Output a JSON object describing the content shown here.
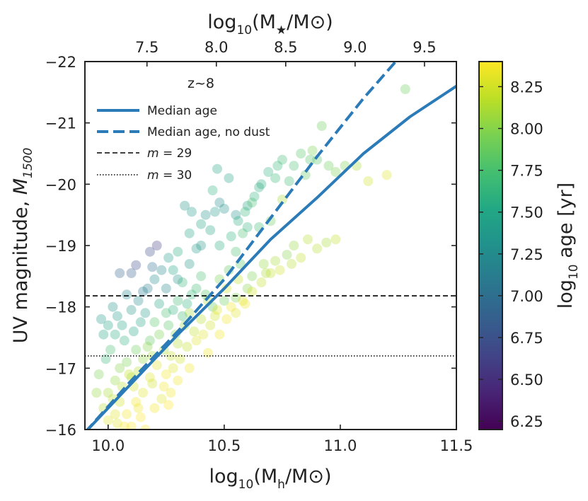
{
  "chart_data": {
    "type": "scatter",
    "xlabel": "log10(Mh/M⊙)",
    "xlabel_parts": {
      "pre": "log",
      "sub": "10",
      "mid": "(M",
      "msub": "h",
      "post": "/M⊙)"
    },
    "top_xlabel": "log10(M★/M⊙)",
    "top_xlabel_parts": {
      "pre": "log",
      "sub": "10",
      "mid": "(M",
      "msub": "★",
      "post": "/M⊙)"
    },
    "ylabel": "UV magnitude, M1500",
    "ylabel_parts": {
      "pre": "UV magnitude, ",
      "mid": "M",
      "msub": "1500"
    },
    "colorbar_label": "log10 age [yr]",
    "colorbar_label_parts": {
      "pre": "log",
      "sub": "10",
      "post": " age [yr]"
    },
    "xlim": [
      9.9,
      11.5
    ],
    "ylim": [
      -16,
      -22
    ],
    "clim": [
      6.2,
      8.4
    ],
    "x_ticks": [
      "10.0",
      "10.5",
      "11.0",
      "11.5"
    ],
    "x_tick_values": [
      10.0,
      10.5,
      11.0,
      11.5
    ],
    "y_ticks": [
      "−16",
      "−17",
      "−18",
      "−19",
      "−20",
      "−21",
      "−22"
    ],
    "y_tick_values": [
      -16,
      -17,
      -18,
      -19,
      -20,
      -21,
      -22
    ],
    "top_ticks": [
      "7.5",
      "8.0",
      "8.5",
      "9.0",
      "9.5"
    ],
    "top_tick_values": [
      7.5,
      8.0,
      8.5,
      9.0,
      9.5
    ],
    "top_axis_map": {
      "at_x": [
        10.0,
        11.5
      ],
      "value": [
        7.22,
        9.73
      ]
    },
    "colorbar_ticks": [
      "6.25",
      "6.50",
      "6.75",
      "7.00",
      "7.25",
      "7.50",
      "7.75",
      "8.00",
      "8.25"
    ],
    "colorbar_tick_values": [
      6.25,
      6.5,
      6.75,
      7.0,
      7.25,
      7.5,
      7.75,
      8.0,
      8.25
    ],
    "legend": {
      "title": "z~8",
      "position": "upper-left",
      "entries": [
        {
          "label": "Median age",
          "style": "solid",
          "color": "#2b7bb9"
        },
        {
          "label": "Median age, no dust",
          "style": "dashed",
          "color": "#2b7bb9"
        },
        {
          "label_italic": "m",
          "label_rest": " = 29",
          "style": "dashed-thin",
          "color": "#000000"
        },
        {
          "label_italic": "m",
          "label_rest": " = 30",
          "style": "dotted",
          "color": "#000000"
        }
      ]
    },
    "series": [
      {
        "name": "Median age",
        "style": "solid",
        "color": "#2b7bb9",
        "x": [
          9.9,
          10.1,
          10.3,
          10.5,
          10.7,
          10.9,
          11.1,
          11.3,
          11.5
        ],
        "y": [
          -15.95,
          -16.75,
          -17.55,
          -18.3,
          -19.1,
          -19.78,
          -20.5,
          -21.1,
          -21.6
        ]
      },
      {
        "name": "Median age, no dust",
        "style": "dashed",
        "color": "#2b7bb9",
        "x": [
          9.9,
          10.1,
          10.3,
          10.5,
          10.7,
          10.9,
          11.1,
          11.25
        ],
        "y": [
          -15.95,
          -16.8,
          -17.6,
          -18.45,
          -19.45,
          -20.45,
          -21.4,
          -22.05
        ]
      }
    ],
    "hlines": [
      {
        "name": "m = 29",
        "y": -18.18,
        "style": "dashed"
      },
      {
        "name": "m = 30",
        "y": -17.2,
        "style": "dotted"
      }
    ],
    "scatter_points": [
      [
        10.05,
        -18.55,
        6.9
      ],
      [
        10.1,
        -18.55,
        6.85
      ],
      [
        10.12,
        -18.68,
        6.7
      ],
      [
        10.21,
        -19.0,
        6.6
      ],
      [
        10.18,
        -18.9,
        6.7
      ],
      [
        10.02,
        -18.0,
        7.35
      ],
      [
        10.04,
        -17.85,
        7.4
      ],
      [
        10.08,
        -18.2,
        7.2
      ],
      [
        10.15,
        -18.25,
        7.1
      ],
      [
        10.25,
        -18.3,
        7.2
      ],
      [
        10.3,
        -18.45,
        7.3
      ],
      [
        10.35,
        -18.7,
        7.35
      ],
      [
        10.4,
        -19.0,
        7.35
      ],
      [
        10.42,
        -19.5,
        7.3
      ],
      [
        10.48,
        -19.7,
        7.25
      ],
      [
        10.5,
        -19.6,
        7.3
      ],
      [
        10.45,
        -19.9,
        7.6
      ],
      [
        10.47,
        -20.25,
        7.5
      ],
      [
        10.52,
        -20.1,
        7.5
      ],
      [
        10.55,
        -19.5,
        7.3
      ],
      [
        10.6,
        -19.65,
        7.45
      ],
      [
        10.65,
        -19.95,
        7.55
      ],
      [
        10.72,
        -20.1,
        7.65
      ],
      [
        10.75,
        -20.4,
        7.7
      ],
      [
        10.78,
        -20.05,
        7.7
      ],
      [
        10.85,
        -20.15,
        7.85
      ],
      [
        10.88,
        -20.55,
        7.95
      ],
      [
        10.9,
        -20.4,
        7.8
      ],
      [
        10.95,
        -20.3,
        7.9
      ],
      [
        11.02,
        -20.3,
        7.95
      ],
      [
        11.12,
        -20.05,
        8.25
      ],
      [
        11.2,
        -20.15,
        8.3
      ],
      [
        11.07,
        -20.3,
        8.1
      ],
      [
        10.86,
        -19.1,
        8.15
      ],
      [
        10.75,
        -19.75,
        8.1
      ],
      [
        10.55,
        -18.9,
        7.75
      ],
      [
        10.58,
        -19.2,
        7.75
      ],
      [
        10.6,
        -19.3,
        7.6
      ],
      [
        10.62,
        -19.7,
        7.75
      ],
      [
        10.65,
        -19.3,
        7.7
      ],
      [
        10.7,
        -19.4,
        7.9
      ],
      [
        10.38,
        -18.95,
        7.4
      ],
      [
        10.35,
        -19.2,
        7.45
      ],
      [
        10.3,
        -18.9,
        7.55
      ],
      [
        10.28,
        -18.6,
        7.5
      ],
      [
        10.32,
        -18.4,
        7.65
      ],
      [
        10.38,
        -18.3,
        7.7
      ],
      [
        10.42,
        -18.2,
        7.8
      ],
      [
        10.45,
        -18.0,
        7.85
      ],
      [
        10.5,
        -18.1,
        7.9
      ],
      [
        10.55,
        -18.15,
        7.95
      ],
      [
        10.6,
        -18.3,
        8.0
      ],
      [
        10.62,
        -18.5,
        7.95
      ],
      [
        10.67,
        -18.7,
        8.05
      ],
      [
        10.68,
        -18.55,
        8.1
      ],
      [
        10.72,
        -18.75,
        8.1
      ],
      [
        10.77,
        -18.85,
        8.0
      ],
      [
        10.8,
        -19.0,
        8.05
      ],
      [
        10.48,
        -18.45,
        7.95
      ],
      [
        10.52,
        -18.6,
        7.85
      ],
      [
        10.57,
        -18.7,
        7.8
      ],
      [
        10.4,
        -18.5,
        7.75
      ],
      [
        10.36,
        -18.2,
        7.65
      ],
      [
        10.3,
        -18.1,
        7.7
      ],
      [
        10.25,
        -17.9,
        7.75
      ],
      [
        10.2,
        -17.75,
        7.8
      ],
      [
        10.18,
        -17.45,
        7.85
      ],
      [
        10.12,
        -17.3,
        7.9
      ],
      [
        10.08,
        -17.1,
        7.95
      ],
      [
        10.05,
        -17.0,
        8.0
      ],
      [
        10.03,
        -16.8,
        8.05
      ],
      [
        10.0,
        -16.6,
        8.1
      ],
      [
        9.98,
        -16.35,
        8.15
      ],
      [
        10.02,
        -16.5,
        8.2
      ],
      [
        10.06,
        -16.7,
        8.15
      ],
      [
        10.1,
        -16.85,
        8.1
      ],
      [
        10.13,
        -16.95,
        8.15
      ],
      [
        10.15,
        -17.15,
        8.05
      ],
      [
        10.17,
        -17.35,
        8.0
      ],
      [
        10.22,
        -17.55,
        7.95
      ],
      [
        10.24,
        -17.3,
        8.1
      ],
      [
        10.27,
        -17.2,
        8.2
      ],
      [
        10.3,
        -17.4,
        8.15
      ],
      [
        10.33,
        -17.7,
        8.05
      ],
      [
        10.35,
        -17.9,
        8.1
      ],
      [
        10.37,
        -17.6,
        8.2
      ],
      [
        10.4,
        -17.8,
        8.15
      ],
      [
        10.43,
        -18.1,
        8.1
      ],
      [
        10.46,
        -17.85,
        8.25
      ],
      [
        10.51,
        -18.3,
        8.25
      ],
      [
        10.56,
        -18.45,
        8.2
      ],
      [
        10.12,
        -16.45,
        8.35
      ],
      [
        10.08,
        -16.25,
        8.35
      ],
      [
        10.04,
        -16.1,
        8.3
      ],
      [
        10.0,
        -16.15,
        8.3
      ],
      [
        10.15,
        -16.6,
        8.3
      ],
      [
        10.18,
        -16.85,
        8.3
      ],
      [
        10.21,
        -17.05,
        8.3
      ],
      [
        10.25,
        -16.9,
        8.35
      ],
      [
        10.27,
        -16.6,
        8.35
      ],
      [
        10.1,
        -16.05,
        8.4
      ],
      [
        10.14,
        -16.2,
        8.4
      ],
      [
        10.2,
        -16.35,
        8.35
      ],
      [
        10.23,
        -16.5,
        8.3
      ],
      [
        10.16,
        -16.0,
        8.4
      ],
      [
        10.01,
        -17.3,
        7.75
      ],
      [
        10.03,
        -17.55,
        7.55
      ],
      [
        10.06,
        -17.7,
        7.45
      ],
      [
        10.1,
        -17.95,
        7.35
      ],
      [
        10.13,
        -18.1,
        7.25
      ],
      [
        10.17,
        -18.3,
        7.15
      ],
      [
        10.2,
        -18.45,
        7.25
      ],
      [
        10.23,
        -18.6,
        7.2
      ],
      [
        10.26,
        -18.8,
        7.4
      ],
      [
        10.19,
        -18.65,
        7.0
      ],
      [
        9.98,
        -17.55,
        7.5
      ],
      [
        9.97,
        -17.8,
        7.4
      ],
      [
        9.99,
        -17.15,
        7.65
      ],
      [
        9.96,
        -16.9,
        7.95
      ],
      [
        9.95,
        -16.6,
        8.05
      ],
      [
        10.0,
        -17.7,
        7.45
      ],
      [
        10.07,
        -17.45,
        7.6
      ],
      [
        10.11,
        -17.6,
        7.5
      ],
      [
        10.14,
        -17.75,
        7.45
      ],
      [
        10.16,
        -17.9,
        7.4
      ],
      [
        10.22,
        -18.05,
        7.45
      ],
      [
        10.28,
        -17.95,
        7.6
      ],
      [
        10.32,
        -17.85,
        7.7
      ],
      [
        10.34,
        -18.05,
        7.6
      ],
      [
        10.26,
        -17.7,
        7.8
      ],
      [
        10.29,
        -17.55,
        8.0
      ],
      [
        10.19,
        -17.2,
        8.1
      ],
      [
        10.09,
        -16.9,
        8.2
      ],
      [
        10.05,
        -16.45,
        8.25
      ],
      [
        10.03,
        -16.25,
        8.3
      ],
      [
        10.11,
        -16.7,
        8.25
      ],
      [
        10.19,
        -16.75,
        8.25
      ],
      [
        10.28,
        -17.0,
        8.3
      ],
      [
        10.31,
        -17.15,
        8.25
      ],
      [
        10.34,
        -17.35,
        8.2
      ],
      [
        10.38,
        -17.45,
        8.3
      ],
      [
        10.41,
        -17.55,
        8.3
      ],
      [
        10.44,
        -17.7,
        8.25
      ],
      [
        10.47,
        -17.95,
        8.3
      ],
      [
        10.53,
        -18.0,
        8.35
      ],
      [
        10.58,
        -18.1,
        8.3
      ],
      [
        10.62,
        -18.25,
        8.25
      ],
      [
        10.66,
        -18.4,
        8.2
      ],
      [
        10.7,
        -18.55,
        8.2
      ],
      [
        10.74,
        -18.6,
        8.25
      ],
      [
        10.79,
        -18.7,
        8.15
      ],
      [
        10.83,
        -18.8,
        8.2
      ],
      [
        10.9,
        -18.95,
        8.15
      ],
      [
        10.94,
        -19.05,
        8.1
      ],
      [
        10.98,
        -19.1,
        8.2
      ],
      [
        10.48,
        -19.0,
        7.55
      ],
      [
        10.53,
        -19.15,
        7.6
      ],
      [
        10.56,
        -19.4,
        7.55
      ],
      [
        10.59,
        -19.55,
        7.65
      ],
      [
        10.63,
        -19.8,
        7.6
      ],
      [
        10.66,
        -20.0,
        7.55
      ],
      [
        10.69,
        -20.2,
        7.6
      ],
      [
        10.73,
        -20.3,
        7.65
      ],
      [
        10.8,
        -20.3,
        7.75
      ],
      [
        10.83,
        -20.5,
        7.8
      ],
      [
        10.44,
        -19.25,
        7.5
      ],
      [
        10.4,
        -19.35,
        7.45
      ],
      [
        10.36,
        -19.55,
        7.4
      ],
      [
        10.33,
        -19.65,
        7.35
      ],
      [
        10.46,
        -19.55,
        7.4
      ],
      [
        11.28,
        -21.55,
        7.9
      ],
      [
        10.92,
        -20.95,
        7.9
      ],
      [
        10.87,
        -20.4,
        7.8
      ],
      [
        10.98,
        -20.2,
        7.95
      ],
      [
        10.35,
        -17.0,
        8.35
      ],
      [
        10.43,
        -17.25,
        8.35
      ],
      [
        10.48,
        -17.55,
        8.35
      ],
      [
        10.51,
        -17.8,
        8.35
      ],
      [
        10.55,
        -17.9,
        8.3
      ],
      [
        10.59,
        -18.05,
        8.35
      ],
      [
        10.24,
        -16.7,
        8.35
      ],
      [
        10.3,
        -16.8,
        8.35
      ],
      [
        10.26,
        -16.4,
        8.4
      ],
      [
        10.07,
        -16.05,
        8.4
      ],
      [
        10.13,
        -16.35,
        8.35
      ]
    ]
  }
}
